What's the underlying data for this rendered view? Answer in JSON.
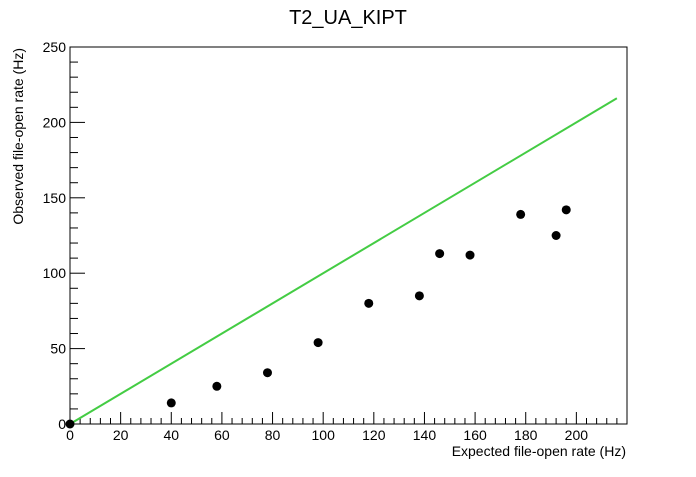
{
  "chart_data": {
    "type": "scatter",
    "title": "T2_UA_KIPT",
    "xlabel": "Expected file-open rate (Hz)",
    "ylabel": "Observed file-open rate (Hz)",
    "xlim": [
      0,
      220
    ],
    "ylim": [
      0,
      250
    ],
    "x_ticks": [
      0,
      20,
      40,
      60,
      80,
      100,
      120,
      140,
      160,
      180,
      200
    ],
    "y_ticks": [
      0,
      50,
      100,
      150,
      200,
      250
    ],
    "grid": false,
    "series": [
      {
        "type": "scatter",
        "color": "#000000",
        "points": [
          {
            "x": 0,
            "y": 0
          },
          {
            "x": 40,
            "y": 14
          },
          {
            "x": 58,
            "y": 25
          },
          {
            "x": 78,
            "y": 34
          },
          {
            "x": 98,
            "y": 54
          },
          {
            "x": 118,
            "y": 80
          },
          {
            "x": 138,
            "y": 85
          },
          {
            "x": 146,
            "y": 113
          },
          {
            "x": 158,
            "y": 112
          },
          {
            "x": 178,
            "y": 139
          },
          {
            "x": 192,
            "y": 125
          },
          {
            "x": 196,
            "y": 142
          }
        ]
      },
      {
        "type": "line",
        "color": "#44cc44",
        "points": [
          {
            "x": 0,
            "y": 0
          },
          {
            "x": 216,
            "y": 216
          }
        ]
      }
    ]
  }
}
